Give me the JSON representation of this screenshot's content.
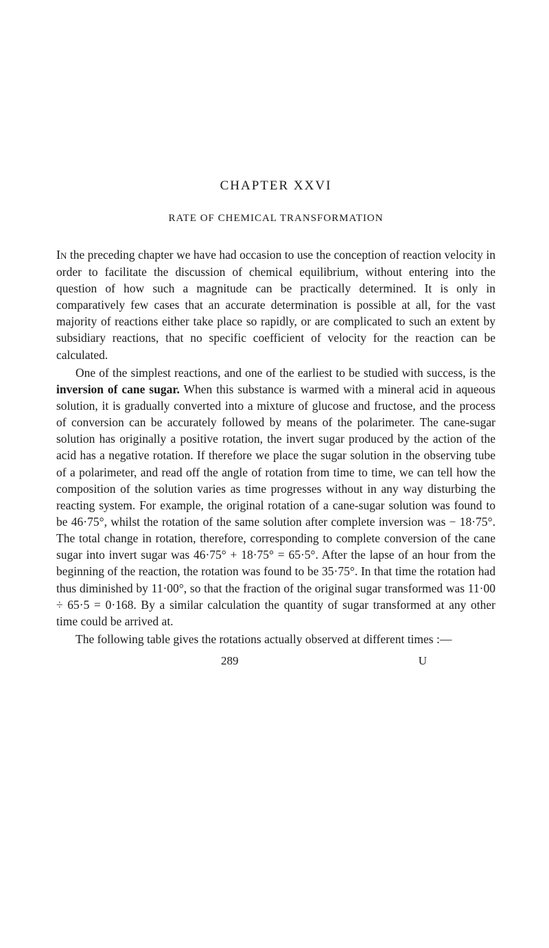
{
  "chapter_title": "CHAPTER XXVI",
  "section_title": "RATE OF CHEMICAL TRANSFORMATION",
  "paragraphs": {
    "p1_lead": "In",
    "p1_rest": " the preceding chapter we have had occasion to use the conception of reaction velocity in order to facilitate the discussion of chemical equilibrium, without entering into the question of how such a magnitude can be practically determined. It is only in comparatively few cases that an accurate determination is possible at all, for the vast majority of reactions either take place so rapidly, or are complicated to such an extent by subsidiary reactions, that no specific coefficient of velocity for the reaction can be calculated.",
    "p2_a": "One of the simplest reactions, and one of the earliest to be studied with success, is the ",
    "p2_bold": "inversion of cane sugar.",
    "p2_b": " When this substance is warmed with a mineral acid in aqueous solution, it is gradually converted into a mixture of glucose and fructose, and the process of conversion can be accurately followed by means of the polarimeter. The cane-sugar solution has originally a positive rotation, the invert sugar produced by the action of the acid has a negative rotation. If therefore we place the sugar solution in the observing tube of a polarimeter, and read off the angle of rotation from time to time, we can tell how the composition of the solution varies as time progresses without in any way disturbing the reacting system. For example, the original rotation of a cane-sugar solution was found to be 46·75°, whilst the rotation of the same solution after complete inversion was − 18·75°. The total change in rotation, therefore, corresponding to complete conversion of the cane sugar into invert sugar was 46·75° + 18·75° = 65·5°. After the lapse of an hour from the beginning of the reaction, the rotation was found to be 35·75°. In that time the rotation had thus diminished by 11·00°, so that the fraction of the original sugar transformed was 11·00 ÷ 65·5 = 0·168. By a similar calculation the quantity of sugar transformed at any other time could be arrived at.",
    "p3": "The following table gives the rotations actually observed at different times :—"
  },
  "footer": {
    "page_number": "289",
    "signature": "U"
  }
}
